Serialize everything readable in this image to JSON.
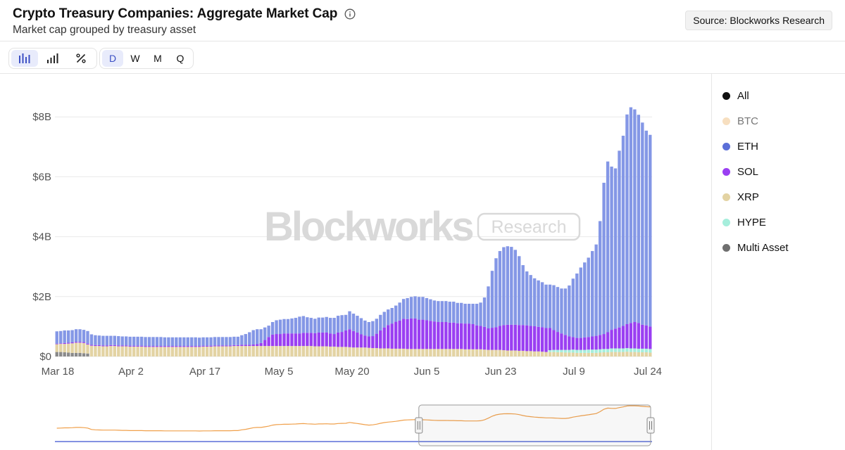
{
  "header": {
    "title": "Crypto Treasury Companies: Aggregate Market Cap",
    "subtitle": "Market cap grouped by treasury asset",
    "source_label": "Source: Blockworks Research"
  },
  "toolbar": {
    "chart_types": [
      {
        "name": "bar-chart-icon",
        "active": true
      },
      {
        "name": "bar-ascending-icon",
        "active": false
      },
      {
        "name": "percent-icon",
        "active": false
      }
    ],
    "intervals": [
      {
        "label": "D",
        "active": true
      },
      {
        "label": "W",
        "active": false
      },
      {
        "label": "M",
        "active": false
      },
      {
        "label": "Q",
        "active": false
      }
    ]
  },
  "watermark": {
    "brand": "Blockworks",
    "tag": "Research"
  },
  "legend": [
    {
      "label": "All",
      "color": "#111111",
      "dim": false
    },
    {
      "label": "BTC",
      "color": "#f7dfc0",
      "dim": true
    },
    {
      "label": "ETH",
      "color": "#5b6fd8",
      "dim": false
    },
    {
      "label": "SOL",
      "color": "#9a3ff2",
      "dim": false
    },
    {
      "label": "XRP",
      "color": "#e3d3a3",
      "dim": false
    },
    {
      "label": "HYPE",
      "color": "#a6eedc",
      "dim": false
    },
    {
      "label": "Multi Asset",
      "color": "#6f6f6f",
      "dim": false
    }
  ],
  "chart_data": {
    "type": "bar",
    "stacked": true,
    "title": "Crypto Treasury Companies: Aggregate Market Cap",
    "subtitle": "Market cap grouped by treasury asset",
    "x_tick_labels": [
      "Mar 18",
      "Apr 2",
      "Apr 17",
      "May 5",
      "May 20",
      "Jun 5",
      "Jun 23",
      "Jul 9",
      "Jul 24"
    ],
    "y_tick_labels": [
      "$0",
      "$2B",
      "$4B",
      "$6B",
      "$8B"
    ],
    "ylim": [
      0,
      8.7
    ],
    "y_unit": "billions USD",
    "grid": true,
    "legend_position": "right",
    "series_order": [
      "Multi Asset",
      "XRP",
      "HYPE",
      "SOL",
      "ETH"
    ],
    "series": [
      {
        "name": "Multi Asset",
        "color": "#8a8a8a",
        "values": [
          0.15,
          0.15,
          0.14,
          0.13,
          0.12,
          0.12,
          0.12,
          0.11,
          0.1,
          0,
          0,
          0,
          0,
          0,
          0,
          0,
          0,
          0,
          0,
          0,
          0,
          0,
          0,
          0,
          0,
          0,
          0,
          0,
          0,
          0,
          0,
          0,
          0,
          0,
          0,
          0,
          0,
          0,
          0,
          0,
          0,
          0,
          0,
          0,
          0,
          0,
          0,
          0,
          0,
          0,
          0,
          0,
          0,
          0,
          0,
          0,
          0,
          0,
          0,
          0,
          0,
          0,
          0,
          0,
          0,
          0,
          0,
          0,
          0,
          0,
          0,
          0,
          0,
          0,
          0,
          0,
          0,
          0,
          0,
          0,
          0,
          0,
          0,
          0,
          0,
          0,
          0,
          0,
          0,
          0,
          0,
          0,
          0,
          0,
          0,
          0,
          0,
          0,
          0,
          0,
          0,
          0,
          0,
          0,
          0,
          0,
          0,
          0,
          0,
          0,
          0,
          0,
          0,
          0,
          0,
          0,
          0,
          0,
          0,
          0,
          0,
          0,
          0,
          0,
          0,
          0,
          0,
          0,
          0,
          0,
          0,
          0,
          0,
          0,
          0,
          0,
          0,
          0,
          0,
          0,
          0,
          0,
          0,
          0,
          0,
          0,
          0,
          0,
          0,
          0,
          0,
          0,
          0,
          0,
          0
        ]
      },
      {
        "name": "XRP",
        "color": "#e3d3a3",
        "values": [
          0.26,
          0.27,
          0.28,
          0.3,
          0.32,
          0.34,
          0.34,
          0.34,
          0.3,
          0.36,
          0.35,
          0.35,
          0.34,
          0.34,
          0.35,
          0.35,
          0.34,
          0.34,
          0.34,
          0.33,
          0.33,
          0.33,
          0.33,
          0.32,
          0.32,
          0.32,
          0.32,
          0.32,
          0.32,
          0.32,
          0.32,
          0.32,
          0.32,
          0.32,
          0.32,
          0.32,
          0.32,
          0.32,
          0.33,
          0.33,
          0.33,
          0.34,
          0.34,
          0.34,
          0.34,
          0.34,
          0.35,
          0.35,
          0.35,
          0.35,
          0.35,
          0.35,
          0.35,
          0.35,
          0.35,
          0.35,
          0.35,
          0.35,
          0.35,
          0.35,
          0.35,
          0.35,
          0.35,
          0.35,
          0.35,
          0.35,
          0.35,
          0.34,
          0.34,
          0.34,
          0.34,
          0.33,
          0.33,
          0.32,
          0.32,
          0.32,
          0.31,
          0.3,
          0.3,
          0.3,
          0.3,
          0.29,
          0.28,
          0.28,
          0.27,
          0.27,
          0.27,
          0.26,
          0.26,
          0.26,
          0.26,
          0.25,
          0.25,
          0.25,
          0.25,
          0.25,
          0.25,
          0.25,
          0.25,
          0.25,
          0.25,
          0.25,
          0.25,
          0.25,
          0.25,
          0.25,
          0.24,
          0.24,
          0.24,
          0.24,
          0.24,
          0.23,
          0.22,
          0.22,
          0.22,
          0.22,
          0.21,
          0.2,
          0.2,
          0.2,
          0.19,
          0.19,
          0.18,
          0.18,
          0.17,
          0.17,
          0.16,
          0.15,
          0.15,
          0.15,
          0.14,
          0.14,
          0.13,
          0.13,
          0.13,
          0.12,
          0.12,
          0.12,
          0.12,
          0.12,
          0.12,
          0.13,
          0.14,
          0.14,
          0.15,
          0.15,
          0.15,
          0.15,
          0.16,
          0.15,
          0.15,
          0.14,
          0.14,
          0.14,
          0.13
        ]
      },
      {
        "name": "HYPE",
        "color": "#a6eedc",
        "values": [
          0,
          0,
          0,
          0,
          0,
          0,
          0,
          0,
          0,
          0,
          0,
          0,
          0,
          0,
          0,
          0,
          0,
          0,
          0,
          0,
          0,
          0,
          0,
          0,
          0,
          0,
          0,
          0,
          0,
          0,
          0,
          0,
          0,
          0,
          0,
          0,
          0,
          0,
          0,
          0,
          0,
          0,
          0,
          0,
          0,
          0,
          0,
          0,
          0,
          0,
          0,
          0,
          0,
          0,
          0,
          0,
          0,
          0,
          0,
          0,
          0,
          0,
          0,
          0,
          0,
          0,
          0,
          0,
          0,
          0,
          0,
          0,
          0,
          0,
          0,
          0,
          0,
          0,
          0,
          0,
          0,
          0,
          0,
          0,
          0,
          0,
          0,
          0,
          0,
          0,
          0,
          0,
          0,
          0,
          0,
          0,
          0,
          0,
          0,
          0,
          0,
          0,
          0,
          0,
          0,
          0,
          0,
          0,
          0,
          0,
          0,
          0,
          0,
          0,
          0,
          0,
          0,
          0,
          0,
          0,
          0,
          0,
          0,
          0,
          0,
          0,
          0,
          0,
          0.06,
          0.07,
          0.08,
          0.08,
          0.09,
          0.09,
          0.1,
          0.1,
          0.1,
          0.1,
          0.11,
          0.11,
          0.11,
          0.11,
          0.11,
          0.11,
          0.12,
          0.12,
          0.12,
          0.12,
          0.12,
          0.12,
          0.12,
          0.12,
          0.12,
          0.12,
          0.12
        ]
      },
      {
        "name": "SOL",
        "color": "#9a3ff2",
        "values": [
          0.02,
          0.02,
          0.03,
          0.03,
          0.03,
          0.03,
          0.03,
          0.03,
          0.03,
          0.03,
          0.03,
          0.03,
          0.03,
          0.03,
          0.03,
          0.03,
          0.03,
          0.03,
          0.03,
          0.03,
          0.03,
          0.03,
          0.03,
          0.03,
          0.03,
          0.03,
          0.03,
          0.03,
          0.03,
          0.03,
          0.03,
          0.03,
          0.03,
          0.03,
          0.03,
          0.03,
          0.03,
          0.03,
          0.03,
          0.03,
          0.03,
          0.03,
          0.03,
          0.03,
          0.03,
          0.03,
          0.03,
          0.03,
          0.04,
          0.04,
          0.04,
          0.05,
          0.06,
          0.1,
          0.2,
          0.3,
          0.38,
          0.4,
          0.4,
          0.42,
          0.42,
          0.42,
          0.42,
          0.42,
          0.44,
          0.44,
          0.44,
          0.44,
          0.46,
          0.46,
          0.46,
          0.44,
          0.42,
          0.48,
          0.5,
          0.55,
          0.6,
          0.55,
          0.5,
          0.44,
          0.4,
          0.38,
          0.4,
          0.48,
          0.6,
          0.7,
          0.78,
          0.84,
          0.9,
          0.94,
          1.0,
          1.0,
          1.02,
          1.02,
          0.98,
          0.98,
          0.96,
          0.94,
          0.92,
          0.9,
          0.9,
          0.9,
          0.88,
          0.88,
          0.86,
          0.86,
          0.86,
          0.86,
          0.84,
          0.8,
          0.78,
          0.76,
          0.72,
          0.74,
          0.76,
          0.8,
          0.84,
          0.86,
          0.86,
          0.86,
          0.86,
          0.86,
          0.86,
          0.84,
          0.84,
          0.82,
          0.82,
          0.8,
          0.74,
          0.66,
          0.6,
          0.55,
          0.5,
          0.45,
          0.42,
          0.4,
          0.4,
          0.42,
          0.42,
          0.44,
          0.46,
          0.48,
          0.5,
          0.56,
          0.62,
          0.66,
          0.7,
          0.75,
          0.8,
          0.85,
          0.88,
          0.86,
          0.8,
          0.78,
          0.75
        ]
      },
      {
        "name": "ETH",
        "color": "#8497e6",
        "values": [
          0.41,
          0.41,
          0.42,
          0.41,
          0.41,
          0.42,
          0.42,
          0.41,
          0.42,
          0.35,
          0.33,
          0.32,
          0.32,
          0.32,
          0.31,
          0.31,
          0.31,
          0.3,
          0.3,
          0.3,
          0.3,
          0.3,
          0.3,
          0.3,
          0.3,
          0.3,
          0.3,
          0.3,
          0.29,
          0.29,
          0.29,
          0.29,
          0.29,
          0.29,
          0.29,
          0.29,
          0.29,
          0.28,
          0.28,
          0.28,
          0.28,
          0.28,
          0.28,
          0.28,
          0.28,
          0.28,
          0.28,
          0.28,
          0.32,
          0.36,
          0.42,
          0.48,
          0.5,
          0.46,
          0.42,
          0.38,
          0.42,
          0.46,
          0.48,
          0.48,
          0.48,
          0.5,
          0.52,
          0.56,
          0.56,
          0.52,
          0.5,
          0.48,
          0.5,
          0.5,
          0.52,
          0.52,
          0.54,
          0.56,
          0.56,
          0.52,
          0.6,
          0.58,
          0.56,
          0.54,
          0.5,
          0.48,
          0.5,
          0.5,
          0.52,
          0.52,
          0.52,
          0.52,
          0.54,
          0.6,
          0.66,
          0.7,
          0.72,
          0.74,
          0.76,
          0.76,
          0.74,
          0.72,
          0.7,
          0.7,
          0.7,
          0.7,
          0.7,
          0.7,
          0.68,
          0.68,
          0.66,
          0.66,
          0.68,
          0.72,
          0.78,
          0.98,
          1.4,
          1.9,
          2.3,
          2.5,
          2.6,
          2.62,
          2.6,
          2.5,
          2.3,
          2.0,
          1.8,
          1.7,
          1.6,
          1.55,
          1.5,
          1.45,
          1.45,
          1.5,
          1.5,
          1.5,
          1.55,
          1.7,
          1.95,
          2.15,
          2.35,
          2.5,
          2.65,
          2.85,
          3.05,
          3.8,
          5.05,
          5.7,
          5.45,
          5.35,
          5.9,
          6.35,
          7.0,
          7.2,
          7.1,
          6.95,
          6.75,
          6.5,
          6.4,
          6.35,
          6.3
        ]
      }
    ]
  },
  "navigator": {
    "series_color": "#f0a04b",
    "baseline_color": "#5b6fd8",
    "window_start_fraction": 0.6,
    "window_end_fraction": 1.0
  }
}
